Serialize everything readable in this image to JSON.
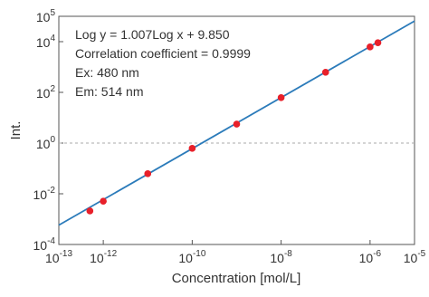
{
  "chart_data": {
    "type": "scatter",
    "x_label": "Concentration [mol/L]",
    "y_label": "Int.",
    "annotations": [
      "Log y = 1.007Log x + 9.850",
      "Correlation coefficient = 0.9999",
      "Ex: 480 nm",
      "Em: 514 nm"
    ],
    "log_x": true,
    "log_y": true,
    "xlim": [
      1e-13,
      1e-05
    ],
    "ylim": [
      0.0001,
      100000
    ],
    "xticks": [
      {
        "value": 1e-13,
        "label": "10",
        "exponent": "-13"
      },
      {
        "value": 1e-12,
        "label": "10",
        "exponent": "-12"
      },
      {
        "value": 1e-10,
        "label": "10",
        "exponent": "-10"
      },
      {
        "value": 1e-08,
        "label": "10",
        "exponent": "-8"
      },
      {
        "value": 1e-06,
        "label": "10",
        "exponent": "-6"
      },
      {
        "value": 1e-05,
        "label": "10",
        "exponent": "-5"
      }
    ],
    "yticks": [
      {
        "value": 0.0001,
        "label": "10",
        "exponent": "-4"
      },
      {
        "value": 0.01,
        "label": "10",
        "exponent": "-2"
      },
      {
        "value": 1,
        "label": "10",
        "exponent": "0"
      },
      {
        "value": 100,
        "label": "10",
        "exponent": "2"
      },
      {
        "value": 10000,
        "label": "10",
        "exponent": "4"
      },
      {
        "value": 100000,
        "label": "10",
        "exponent": "5"
      }
    ],
    "reference_line": {
      "value": 1,
      "color": "#aaaaaa"
    },
    "fit_line": {
      "x": [
        1e-13,
        1e-05
      ],
      "values": [
        0.00058,
        65000
      ],
      "color": "#2b7bba"
    },
    "series": [
      {
        "color": "#e8202a",
        "x": [
          5e-13,
          1e-12,
          1e-11,
          1e-10,
          1e-09,
          1e-08,
          1e-07,
          1e-06,
          1.5e-06
        ],
        "values": [
          0.0021,
          0.0051,
          0.062,
          0.62,
          5.6,
          62,
          620,
          6200,
          9100
        ]
      }
    ]
  }
}
